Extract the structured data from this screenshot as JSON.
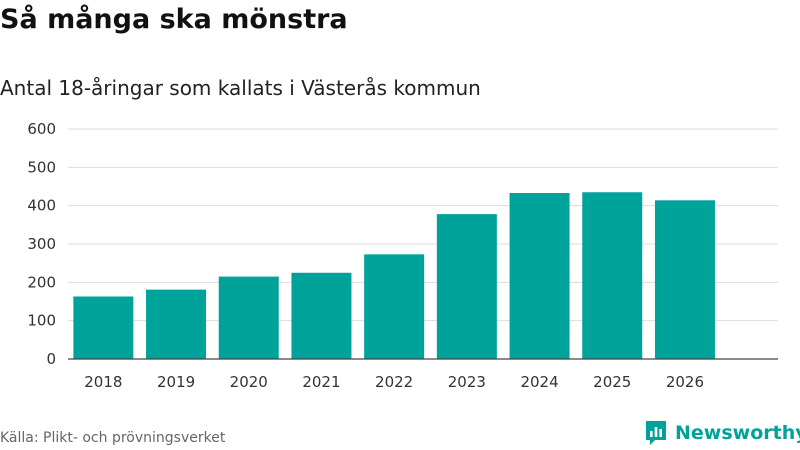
{
  "header": {
    "title": "Så många ska mönstra",
    "subtitle": "Antal 18-åringar som kallats i Västerås kommun"
  },
  "chart_data": {
    "type": "bar",
    "title": "Så många ska mönstra",
    "subtitle": "Antal 18-åringar som kallats i Västerås kommun",
    "xlabel": "",
    "ylabel": "",
    "categories": [
      "2018",
      "2019",
      "2020",
      "2021",
      "2022",
      "2023",
      "2024",
      "2025",
      "2026"
    ],
    "values": [
      163,
      181,
      215,
      225,
      273,
      378,
      433,
      435,
      414
    ],
    "ylim": [
      0,
      600
    ],
    "yticks": [
      0,
      100,
      200,
      300,
      400,
      500,
      600
    ],
    "grid": true,
    "bar_color": "#00a39a"
  },
  "footer": {
    "source": "Källa: Plikt- och prövningsverket",
    "brand": "Newsworthy",
    "brand_icon": "newsworthy-logo-icon",
    "brand_color": "#00a39a"
  }
}
